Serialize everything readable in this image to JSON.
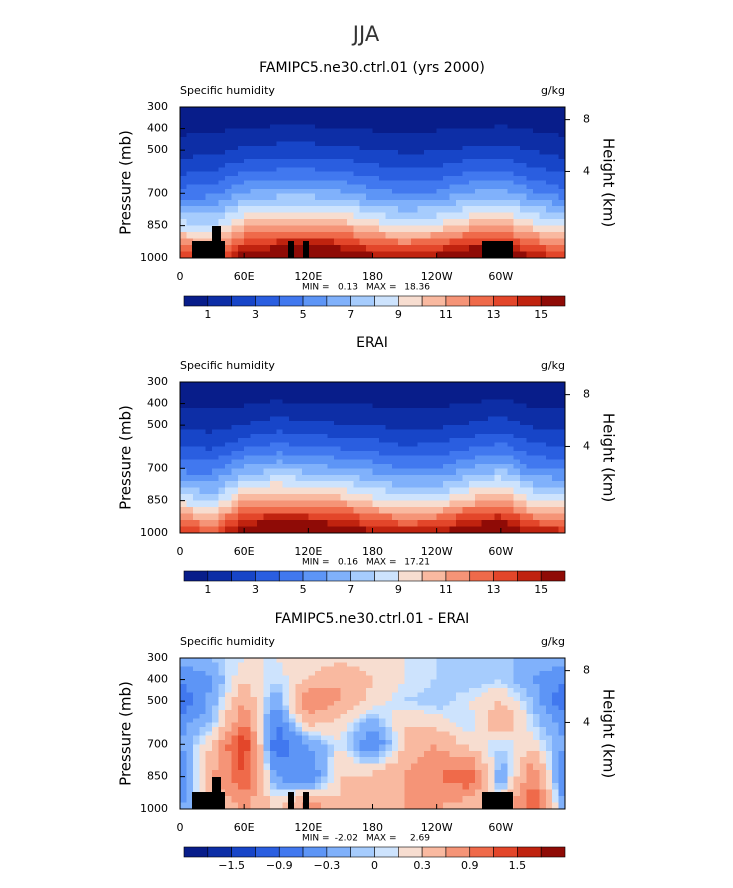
{
  "title": "JJA",
  "chart_data": [
    {
      "type": "contour",
      "title": "FAMIPC5.ne30.ctrl.01 (yrs 2000)",
      "left_title": "Specific humidity",
      "right_title": "g/kg",
      "ylabel": "Pressure (mb)",
      "y2label": "Height (km)",
      "x": [
        0,
        30,
        60,
        90,
        120,
        150,
        180,
        210,
        240,
        270,
        300,
        330,
        360
      ],
      "y": [
        300,
        400,
        500,
        600,
        700,
        850,
        1000
      ],
      "values": [
        [
          0.24,
          0.26,
          0.33,
          0.36,
          0.36,
          0.35,
          0.3,
          0.27,
          0.29,
          0.33,
          0.36,
          0.29,
          0.24
        ],
        [
          0.7,
          0.8,
          1.0,
          1.1,
          1.1,
          1.0,
          0.9,
          0.8,
          0.9,
          1.0,
          1.1,
          0.9,
          0.7
        ],
        [
          1.6,
          1.7,
          2.2,
          2.4,
          2.4,
          2.3,
          2.0,
          1.8,
          1.9,
          2.2,
          2.4,
          1.9,
          1.6
        ],
        [
          2.8,
          3.0,
          3.9,
          4.2,
          4.2,
          4.0,
          3.5,
          3.2,
          3.3,
          3.9,
          4.2,
          3.3,
          2.8
        ],
        [
          4.4,
          4.7,
          6.1,
          6.6,
          6.6,
          6.3,
          5.5,
          5.0,
          5.2,
          6.1,
          6.6,
          5.2,
          4.4
        ],
        [
          8.5,
          8.0,
          10.5,
          11.0,
          11.0,
          10.8,
          9.5,
          8.8,
          9.2,
          10.4,
          11.0,
          9.5,
          8.5
        ],
        [
          14,
          13,
          16,
          17,
          17.5,
          17,
          15.5,
          15,
          15.5,
          17,
          17,
          15,
          14
        ]
      ],
      "xlim": [
        0,
        360
      ],
      "xticks": [
        0,
        {
          "value": 60,
          "label": "60E"
        },
        {
          "value": 120,
          "label": "120E"
        },
        180,
        {
          "value": 240,
          "label": "120W"
        },
        {
          "value": 300,
          "label": "60W"
        }
      ],
      "ylim": [
        1000,
        300
      ],
      "yticks": [
        300,
        400,
        500,
        700,
        850,
        1000
      ],
      "y2ticks": [
        4,
        8
      ],
      "min_label": "MIN =",
      "min": 0.13,
      "max_label": "MAX =",
      "max": 18.36,
      "colorbar": {
        "levels": [
          1,
          2,
          3,
          4,
          5,
          6,
          7,
          8,
          9,
          10,
          11,
          12,
          13,
          14,
          15
        ],
        "colors": [
          "#081d8a",
          "#0d2ea6",
          "#1745c8",
          "#2a5ee0",
          "#4178ef",
          "#5d95f6",
          "#80b1fb",
          "#a6ccfd",
          "#cde3fd",
          "#f7ddd0",
          "#f9b9a0",
          "#f59477",
          "#ef6a4a",
          "#e3462a",
          "#c0230f",
          "#8f0b06"
        ],
        "ticks": [
          1,
          3,
          5,
          7,
          9,
          11,
          13,
          15
        ]
      }
    },
    {
      "type": "contour",
      "title": "ERAI",
      "left_title": "Specific humidity",
      "right_title": "g/kg",
      "ylabel": "Pressure (mb)",
      "y2label": "Height (km)",
      "x": [
        0,
        30,
        60,
        90,
        120,
        150,
        180,
        210,
        240,
        270,
        300,
        330,
        360
      ],
      "y": [
        300,
        400,
        500,
        600,
        700,
        850,
        1000
      ],
      "values": [
        [
          0.22,
          0.25,
          0.3,
          0.34,
          0.34,
          0.32,
          0.28,
          0.26,
          0.27,
          0.3,
          0.35,
          0.28,
          0.22
        ],
        [
          0.8,
          0.8,
          0.9,
          1.1,
          1.0,
          0.9,
          0.9,
          0.8,
          0.8,
          1.0,
          1.2,
          0.8,
          0.8
        ],
        [
          1.8,
          1.6,
          2.0,
          2.5,
          2.2,
          2.1,
          2.0,
          1.7,
          1.8,
          2.1,
          2.5,
          1.8,
          1.8
        ],
        [
          3.0,
          2.8,
          3.7,
          4.3,
          4.0,
          3.8,
          3.5,
          3.1,
          3.2,
          3.8,
          4.3,
          3.2,
          3.0
        ],
        [
          4.6,
          4.6,
          6.2,
          6.8,
          6.5,
          6.1,
          5.6,
          4.9,
          5.0,
          6.0,
          6.8,
          5.0,
          4.6
        ],
        [
          8.8,
          7.5,
          11.0,
          11.3,
          11.0,
          10.5,
          9.4,
          8.6,
          8.7,
          10.2,
          11.2,
          9.0,
          8.8
        ],
        [
          14.5,
          13,
          16.5,
          17,
          17,
          16.8,
          15.3,
          14.8,
          15,
          16.8,
          17,
          14.8,
          14.5
        ]
      ],
      "xlim": [
        0,
        360
      ],
      "xticks": [
        0,
        {
          "value": 60,
          "label": "60E"
        },
        {
          "value": 120,
          "label": "120E"
        },
        180,
        {
          "value": 240,
          "label": "120W"
        },
        {
          "value": 300,
          "label": "60W"
        }
      ],
      "ylim": [
        1000,
        300
      ],
      "yticks": [
        300,
        400,
        500,
        700,
        850,
        1000
      ],
      "y2ticks": [
        4,
        8
      ],
      "min_label": "MIN =",
      "min": 0.16,
      "max_label": "MAX =",
      "max": 17.21,
      "colorbar": {
        "levels": [
          1,
          2,
          3,
          4,
          5,
          6,
          7,
          8,
          9,
          10,
          11,
          12,
          13,
          14,
          15
        ],
        "colors": [
          "#081d8a",
          "#0d2ea6",
          "#1745c8",
          "#2a5ee0",
          "#4178ef",
          "#5d95f6",
          "#80b1fb",
          "#a6ccfd",
          "#cde3fd",
          "#f7ddd0",
          "#f9b9a0",
          "#f59477",
          "#ef6a4a",
          "#e3462a",
          "#c0230f",
          "#8f0b06"
        ],
        "ticks": [
          1,
          3,
          5,
          7,
          9,
          11,
          13,
          15
        ]
      }
    },
    {
      "type": "contour",
      "title": "FAMIPC5.ne30.ctrl.01 - ERAI",
      "left_title": "Specific humidity",
      "right_title": "g/kg",
      "ylabel": "Pressure (mb)",
      "y2label": "Height (km)",
      "x": [
        0,
        30,
        60,
        90,
        120,
        150,
        180,
        210,
        240,
        270,
        300,
        330,
        360
      ],
      "y": [
        300,
        400,
        500,
        600,
        700,
        850,
        1000
      ],
      "values": [
        [
          -0.1,
          -0.1,
          0.1,
          0.1,
          0.2,
          0.2,
          0.1,
          0.1,
          0.0,
          0.0,
          -0.1,
          -0.1,
          -0.1
        ],
        [
          -0.6,
          -0.3,
          0.3,
          0.0,
          0.3,
          0.6,
          0.3,
          0.1,
          0.0,
          -0.1,
          0.0,
          -0.3,
          -0.6
        ],
        [
          -0.9,
          -0.2,
          0.6,
          -0.3,
          0.9,
          0.6,
          0.2,
          0.0,
          -0.1,
          0.1,
          0.3,
          -0.1,
          -0.9
        ],
        [
          -0.4,
          -0.1,
          0.9,
          -0.6,
          0.4,
          0.2,
          -0.2,
          0.3,
          0.2,
          0.0,
          0.6,
          0.0,
          -0.4
        ],
        [
          -0.3,
          0.3,
          1.5,
          -0.9,
          -0.3,
          0.1,
          -0.6,
          0.3,
          0.6,
          0.2,
          0.0,
          0.2,
          -0.3
        ],
        [
          -0.6,
          0.6,
          1.2,
          -0.3,
          -0.6,
          0.3,
          0.4,
          0.6,
          0.9,
          1.2,
          -0.3,
          0.9,
          -0.6
        ],
        [
          -0.3,
          0.3,
          0.6,
          0.3,
          0.9,
          0.3,
          0.3,
          0.6,
          0.6,
          0.3,
          0.3,
          1.2,
          -0.3
        ]
      ],
      "xlim": [
        0,
        360
      ],
      "xticks": [
        0,
        {
          "value": 60,
          "label": "60E"
        },
        {
          "value": 120,
          "label": "120E"
        },
        180,
        {
          "value": 240,
          "label": "120W"
        },
        {
          "value": 300,
          "label": "60W"
        }
      ],
      "ylim": [
        1000,
        300
      ],
      "yticks": [
        300,
        400,
        500,
        700,
        850,
        1000
      ],
      "y2ticks": [
        4,
        8
      ],
      "min_label": "MIN =",
      "min": -2.02,
      "max_label": "MAX =",
      "max": 2.69,
      "colorbar": {
        "levels": [
          -1.8,
          -1.5,
          -1.2,
          -0.9,
          -0.6,
          -0.3,
          -0.1,
          0,
          0.1,
          0.3,
          0.6,
          0.9,
          1.2,
          1.5,
          1.8
        ],
        "colors": [
          "#081d8a",
          "#0d2ea6",
          "#1745c8",
          "#2a5ee0",
          "#4178ef",
          "#5d95f6",
          "#80b1fb",
          "#a6ccfd",
          "#cde3fd",
          "#f7ddd0",
          "#f9b9a0",
          "#f59477",
          "#ef6a4a",
          "#e3462a",
          "#c0230f",
          "#8f0b06"
        ],
        "ticks": [
          {
            "value": -1.5,
            "label": "−1.5"
          },
          {
            "value": -0.9,
            "label": "−0.9"
          },
          {
            "value": -0.3,
            "label": "−0.3"
          },
          0,
          0.3,
          0.9,
          1.5
        ]
      }
    }
  ]
}
